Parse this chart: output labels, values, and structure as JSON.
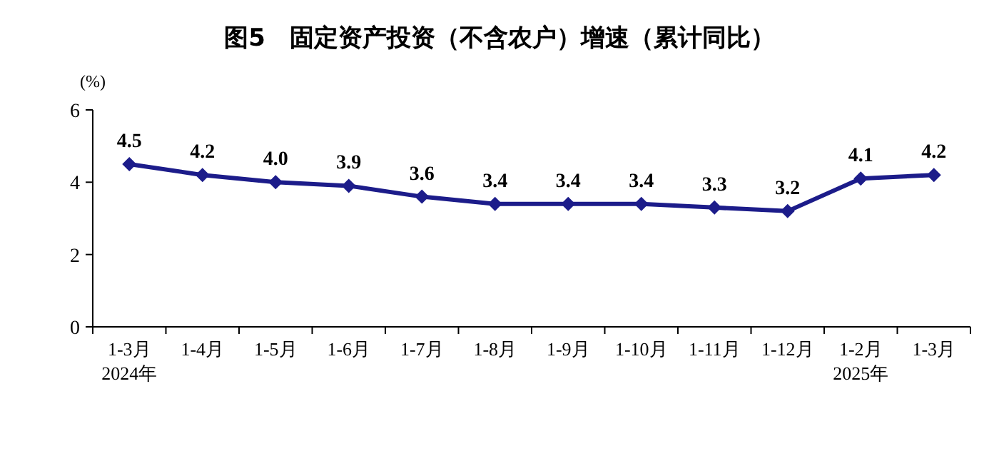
{
  "chart_data": {
    "type": "line",
    "title": "图5　固定资产投资（不含农户）增速（累计同比）",
    "ylabel": "(%)",
    "categories": [
      "1-3月\n2024年",
      "1-4月",
      "1-5月",
      "1-6月",
      "1-7月",
      "1-8月",
      "1-9月",
      "1-10月",
      "1-11月",
      "1-12月",
      "1-2月\n2025年",
      "1-3月"
    ],
    "series": [
      {
        "color": "#1c1c8a",
        "values": [
          4.5,
          4.2,
          4.0,
          3.9,
          3.6,
          3.4,
          3.4,
          3.4,
          3.3,
          3.2,
          4.1,
          4.2
        ],
        "value_labels": [
          "4.5",
          "4.2",
          "4.0",
          "3.9",
          "3.6",
          "3.4",
          "3.4",
          "3.4",
          "3.3",
          "3.2",
          "4.1",
          "4.2"
        ]
      }
    ],
    "ylim": [
      0,
      6
    ],
    "yticks": [
      0,
      2,
      4,
      6
    ],
    "grid": false,
    "marker": "diamond",
    "line_style": "solid"
  }
}
